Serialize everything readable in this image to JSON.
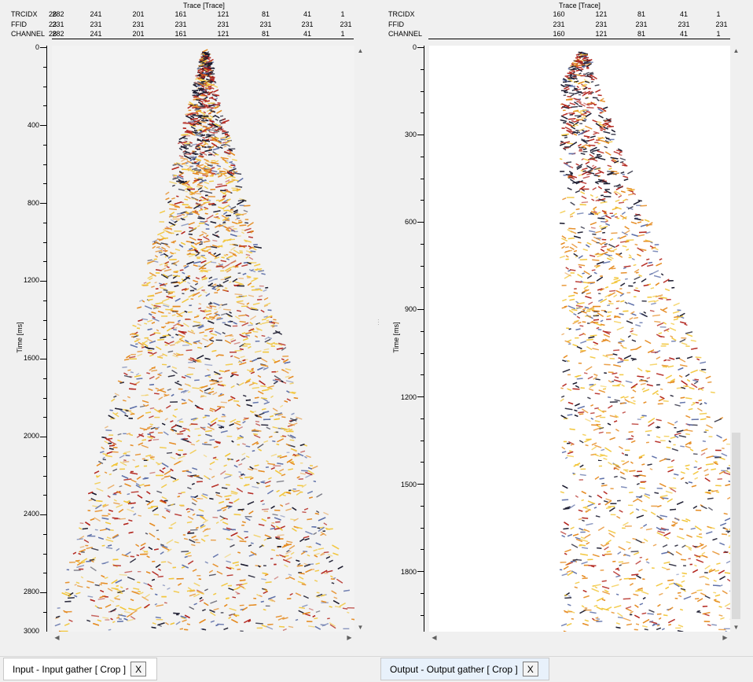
{
  "left_panel": {
    "header_title": "Trace [Trace]",
    "rows": [
      {
        "label": "TRCIDX",
        "values": [
          "282",
          "241",
          "201",
          "161",
          "121",
          "81",
          "41",
          "1"
        ],
        "first_overlap": "28"
      },
      {
        "label": "FFID",
        "values": [
          "231",
          "231",
          "231",
          "231",
          "231",
          "231",
          "231",
          "231"
        ],
        "first_overlap": "23"
      },
      {
        "label": "CHANNEL",
        "values": [
          "282",
          "241",
          "201",
          "161",
          "121",
          "81",
          "41",
          "1"
        ],
        "first_overlap": "28"
      }
    ],
    "y_axis_title": "Time [ms]",
    "y_ticks": [
      "0",
      "400",
      "800",
      "1200",
      "1600",
      "2000",
      "2400",
      "2800",
      "3000"
    ]
  },
  "right_panel": {
    "header_title": "Trace [Trace]",
    "rows": [
      {
        "label": "TRCIDX",
        "values": [
          "160",
          "121",
          "81",
          "41",
          "1"
        ]
      },
      {
        "label": "FFID",
        "values": [
          "231",
          "231",
          "231",
          "231",
          "231",
          "231"
        ]
      },
      {
        "label": "CHANNEL",
        "values": [
          "160",
          "121",
          "81",
          "41",
          "1"
        ]
      }
    ],
    "y_axis_title": "Time [ms]",
    "y_ticks": [
      "0",
      "300",
      "600",
      "900",
      "1200",
      "1500",
      "1800"
    ]
  },
  "tabs": [
    {
      "label": "Input - Input gather [ Crop ]",
      "close_label": "X",
      "active": true
    },
    {
      "label": "Output - Output gather [ Crop ]",
      "close_label": "X",
      "active": false
    }
  ],
  "colors": {
    "background": "#f0f0f0",
    "plot_bg": "#f3f3f3",
    "wiggle_dark": "#1a1a2e",
    "wiggle_red": "#b3261e",
    "wiggle_orange": "#e58a1f",
    "wiggle_yellow": "#f2c63a",
    "wiggle_blue": "#5d6fa8"
  },
  "icons": {
    "scroll_up": "triangle-up",
    "scroll_down": "triangle-down",
    "scroll_left": "triangle-left",
    "scroll_right": "triangle-right",
    "close": "x"
  }
}
